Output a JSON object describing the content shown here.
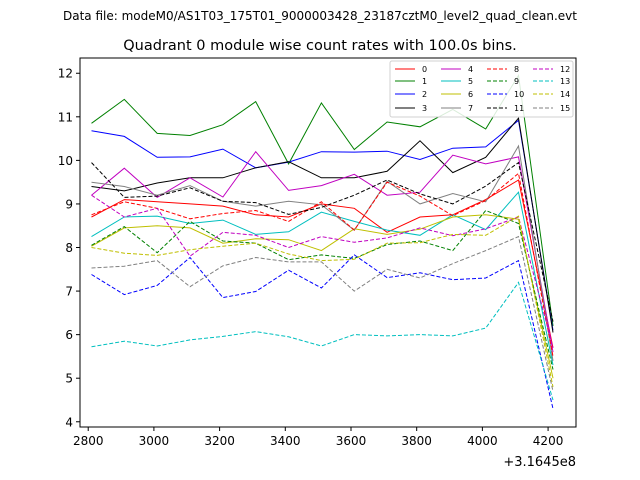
{
  "header_text": "Data file: modeM0/AS1T03_175T01_9000003428_23187cztM0_level2_quad_clean.evt",
  "chart_data": {
    "type": "line",
    "title": "Quadrant 0 module wise count rates with 100.0s bins.",
    "xlabel": "",
    "ylabel": "",
    "x_offset_label": "+3.1645e8",
    "xlim": [
      2775,
      4285
    ],
    "ylim": [
      3.88,
      12.35
    ],
    "xticks": [
      2800,
      3000,
      3200,
      3400,
      3600,
      3800,
      4000,
      4200
    ],
    "yticks": [
      4,
      5,
      6,
      7,
      8,
      9,
      10,
      11,
      12
    ],
    "grid": false,
    "legend_position": "top-right",
    "x": [
      2810,
      2910,
      3010,
      3110,
      3210,
      3310,
      3410,
      3510,
      3610,
      3710,
      3810,
      3910,
      4010,
      4110,
      4215
    ],
    "series": [
      {
        "name": "0",
        "color": "#ff0000",
        "dash": "solid",
        "values": [
          8.7,
          9.1,
          9.05,
          9.0,
          8.95,
          8.75,
          8.7,
          9.0,
          8.9,
          8.35,
          8.7,
          8.75,
          9.1,
          9.55,
          5.7
        ]
      },
      {
        "name": "1",
        "color": "#008000",
        "dash": "solid",
        "values": [
          10.85,
          11.4,
          10.62,
          10.57,
          10.82,
          11.35,
          9.92,
          11.32,
          10.25,
          10.88,
          10.77,
          11.17,
          10.72,
          11.95,
          6.2
        ]
      },
      {
        "name": "2",
        "color": "#0000ff",
        "dash": "solid",
        "values": [
          10.68,
          10.55,
          10.07,
          10.08,
          10.26,
          9.83,
          9.96,
          10.2,
          10.19,
          10.21,
          10.02,
          10.28,
          10.31,
          10.92,
          6.1
        ]
      },
      {
        "name": "3",
        "color": "#000000",
        "dash": "solid",
        "values": [
          9.4,
          9.3,
          9.48,
          9.6,
          9.6,
          9.83,
          9.97,
          9.6,
          9.6,
          9.75,
          10.45,
          9.72,
          10.07,
          10.97,
          6.05
        ]
      },
      {
        "name": "4",
        "color": "#c000c0",
        "dash": "solid",
        "values": [
          9.2,
          9.82,
          9.15,
          9.6,
          9.16,
          10.2,
          9.31,
          9.42,
          9.68,
          9.2,
          9.27,
          10.12,
          9.92,
          10.08,
          5.6
        ]
      },
      {
        "name": "5",
        "color": "#00bfbf",
        "dash": "solid",
        "values": [
          8.25,
          8.7,
          8.72,
          8.55,
          8.63,
          8.3,
          8.36,
          8.81,
          8.6,
          8.4,
          8.28,
          8.75,
          8.41,
          9.27,
          5.3
        ]
      },
      {
        "name": "6",
        "color": "#bfbf00",
        "dash": "solid",
        "values": [
          8.03,
          8.45,
          8.5,
          8.45,
          8.1,
          8.2,
          8.18,
          7.93,
          8.43,
          8.3,
          8.42,
          8.7,
          8.75,
          8.65,
          5.0
        ]
      },
      {
        "name": "7",
        "color": "#808080",
        "dash": "solid",
        "values": [
          9.5,
          9.4,
          9.2,
          9.42,
          9.06,
          8.95,
          9.06,
          8.98,
          8.4,
          9.52,
          9.0,
          9.24,
          9.05,
          10.33,
          5.4
        ]
      },
      {
        "name": "8",
        "color": "#ff0000",
        "dash": "dashed",
        "values": [
          8.75,
          9.05,
          8.9,
          8.66,
          8.78,
          8.85,
          8.6,
          9.05,
          8.4,
          9.5,
          9.18,
          8.73,
          9.08,
          9.7,
          5.5
        ]
      },
      {
        "name": "9",
        "color": "#008000",
        "dash": "dashed",
        "values": [
          8.05,
          8.48,
          7.88,
          8.6,
          8.15,
          8.1,
          7.72,
          7.83,
          7.75,
          8.07,
          8.15,
          7.93,
          8.85,
          8.55,
          5.2
        ]
      },
      {
        "name": "10",
        "color": "#0000ff",
        "dash": "dashed",
        "values": [
          7.38,
          6.92,
          7.13,
          7.77,
          6.85,
          6.99,
          7.48,
          7.07,
          7.83,
          7.31,
          7.42,
          7.26,
          7.3,
          7.7,
          4.3
        ]
      },
      {
        "name": "11",
        "color": "#000000",
        "dash": "dashed",
        "values": [
          9.95,
          9.15,
          9.18,
          9.37,
          9.06,
          9.03,
          8.76,
          8.92,
          9.2,
          9.55,
          9.23,
          9.0,
          9.41,
          9.95,
          6.3
        ]
      },
      {
        "name": "12",
        "color": "#c000c0",
        "dash": "dashed",
        "values": [
          9.2,
          8.7,
          8.9,
          7.8,
          8.35,
          8.28,
          8.0,
          8.25,
          8.12,
          8.22,
          8.45,
          8.27,
          8.43,
          8.7,
          5.7
        ]
      },
      {
        "name": "13",
        "color": "#00bfbf",
        "dash": "dashed",
        "values": [
          5.72,
          5.85,
          5.74,
          5.88,
          5.96,
          6.07,
          5.95,
          5.74,
          6.0,
          5.97,
          6.0,
          5.97,
          6.15,
          7.2,
          4.5
        ]
      },
      {
        "name": "14",
        "color": "#bfbf00",
        "dash": "dashed",
        "values": [
          8.0,
          7.87,
          7.82,
          7.95,
          8.03,
          8.1,
          7.85,
          7.7,
          7.73,
          8.1,
          8.11,
          8.3,
          8.28,
          8.72,
          4.8
        ]
      },
      {
        "name": "15",
        "color": "#808080",
        "dash": "dashed",
        "values": [
          7.53,
          7.57,
          7.7,
          7.1,
          7.58,
          7.77,
          7.67,
          7.67,
          7.0,
          7.5,
          7.3,
          7.63,
          7.93,
          8.25,
          4.7
        ]
      }
    ]
  }
}
